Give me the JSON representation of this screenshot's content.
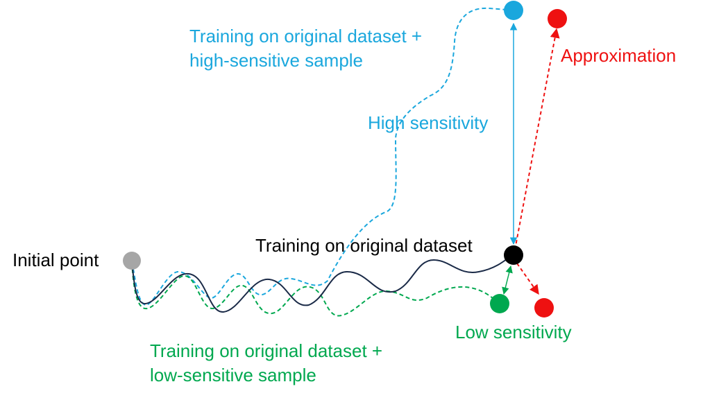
{
  "labels": {
    "initial_point": "Initial point",
    "original_training": "Training on original dataset",
    "high_training_line1": "Training on original dataset +",
    "high_training_line2": "high-sensitive sample",
    "low_training_line1": "Training on original dataset +",
    "low_training_line2": "low-sensitive sample",
    "high_sensitivity": "High sensitivity",
    "low_sensitivity": "Low sensitivity",
    "approximation": "Approximation"
  },
  "colors": {
    "original_path": "#1a2a47",
    "high_sensitive": "#1aa7dd",
    "low_sensitive": "#00a84f",
    "approximation": "#ee1111",
    "initial_point": "#a6a6a6",
    "original_endpoint": "#000000",
    "text": "#000000"
  }
}
